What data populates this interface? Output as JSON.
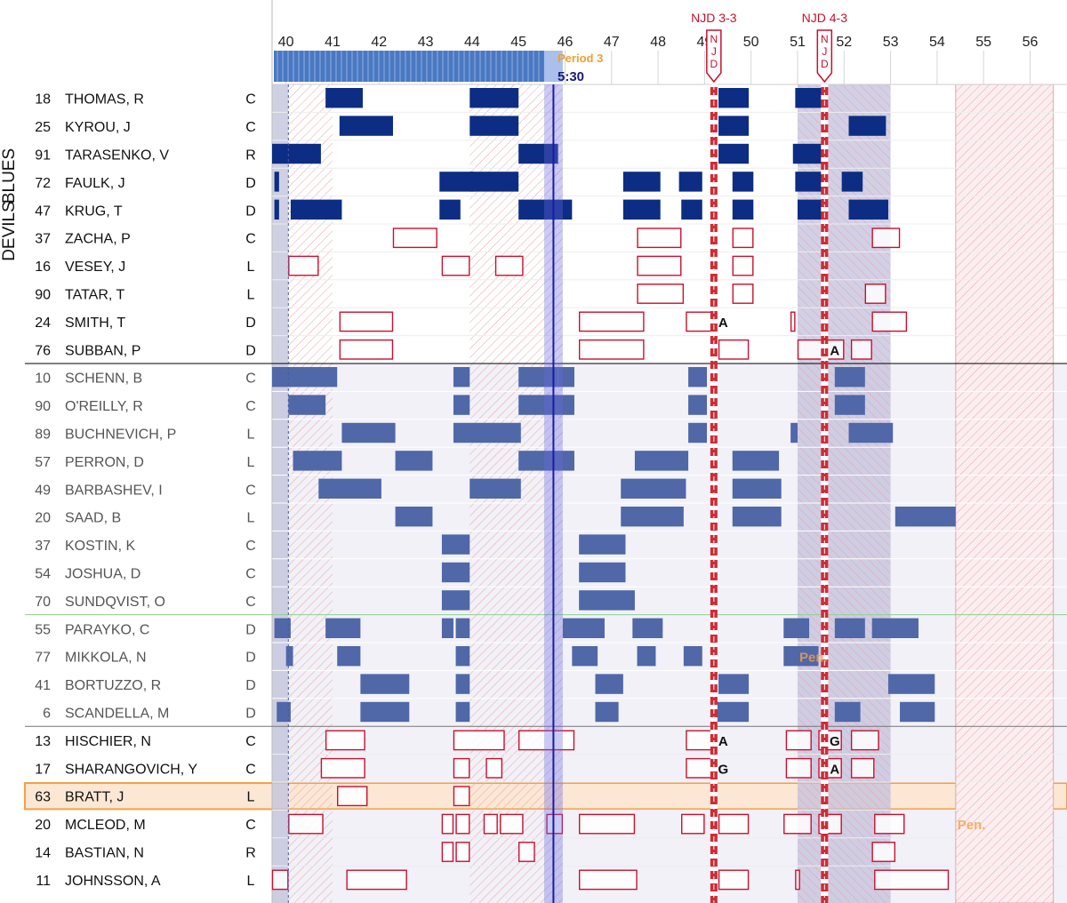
{
  "team_labels": {
    "top": "DEVILS",
    "bottom": "BLUES"
  },
  "period_label": "Period 3",
  "time_label": "5:30",
  "chart_data": {
    "type": "shift-chart",
    "x_ticks": [
      "40",
      "41",
      "42",
      "43",
      "44",
      "45",
      "46",
      "47",
      "48",
      "49",
      "50",
      "51",
      "52",
      "53",
      "54",
      "55",
      "56"
    ],
    "xlim": [
      39.7,
      56.8
    ],
    "colors": {
      "blues": "#0c2d83",
      "devils": "#c8102e",
      "highlight": "#f5a045",
      "period": "#4a78c2",
      "goal_line": "#d02b35"
    },
    "goals": [
      {
        "label": "NJD 3-3",
        "team": "NJD",
        "time": 49.2
      },
      {
        "label": "NJD 4-3",
        "team": "NJD",
        "time": 51.58
      }
    ],
    "team_code": "N J D",
    "penalty_label": "Pen.",
    "penalties": [
      {
        "team": "BLUES",
        "start": 51.0,
        "end": 53.0,
        "label_row": "MIKKOLA, N"
      },
      {
        "team": "DEVILS",
        "start": 54.4,
        "end": 56.5,
        "label_row": "MCLEOD, M"
      }
    ],
    "players": [
      {
        "num": "18",
        "name": "THOMAS, R",
        "pos": "C",
        "team": "BLUES",
        "shifts": [
          [
            40.85,
            41.65
          ],
          [
            43.95,
            45.0
          ],
          [
            49.3,
            49.95
          ],
          [
            50.95,
            51.6
          ]
        ]
      },
      {
        "num": "25",
        "name": "KYROU, J",
        "pos": "C",
        "team": "BLUES",
        "shifts": [
          [
            41.15,
            42.3
          ],
          [
            43.95,
            45.0
          ],
          [
            49.3,
            49.95
          ],
          [
            52.1,
            52.9
          ]
        ]
      },
      {
        "num": "91",
        "name": "TARASENKO, V",
        "pos": "R",
        "team": "BLUES",
        "shifts": [
          [
            39.7,
            40.75
          ],
          [
            45.0,
            45.85
          ],
          [
            49.3,
            49.95
          ],
          [
            50.9,
            51.6
          ]
        ]
      },
      {
        "num": "72",
        "name": "FAULK, J",
        "pos": "D",
        "team": "BLUES",
        "shifts": [
          [
            39.75,
            39.85
          ],
          [
            43.3,
            44.05
          ],
          [
            43.95,
            45.0
          ],
          [
            47.25,
            48.05
          ],
          [
            48.45,
            48.95
          ],
          [
            49.6,
            50.05
          ],
          [
            50.95,
            51.6
          ],
          [
            51.95,
            52.4
          ]
        ]
      },
      {
        "num": "47",
        "name": "KRUG, T",
        "pos": "D",
        "team": "BLUES",
        "shifts": [
          [
            39.75,
            39.85
          ],
          [
            40.1,
            41.2
          ],
          [
            43.3,
            43.75
          ],
          [
            45.0,
            46.15
          ],
          [
            47.25,
            48.05
          ],
          [
            48.5,
            48.95
          ],
          [
            49.6,
            50.05
          ],
          [
            51.0,
            51.55
          ],
          [
            52.1,
            52.95
          ]
        ]
      },
      {
        "num": "37",
        "name": "ZACHA, P",
        "pos": "C",
        "team": "DEVILS",
        "shifts": [
          [
            42.3,
            43.25
          ],
          [
            47.55,
            48.5
          ],
          [
            49.6,
            50.05
          ],
          [
            52.6,
            53.2
          ]
        ]
      },
      {
        "num": "16",
        "name": "VESEY, J",
        "pos": "L",
        "team": "DEVILS",
        "shifts": [
          [
            40.05,
            40.7
          ],
          [
            43.35,
            43.95
          ],
          [
            44.5,
            45.1
          ],
          [
            47.55,
            48.5
          ],
          [
            49.6,
            50.05
          ]
        ]
      },
      {
        "num": "90",
        "name": "TATAR, T",
        "pos": "L",
        "team": "DEVILS",
        "shifts": [
          [
            47.55,
            48.55
          ],
          [
            49.6,
            50.05
          ],
          [
            52.45,
            52.9
          ]
        ]
      },
      {
        "num": "24",
        "name": "SMITH, T",
        "pos": "D",
        "team": "DEVILS",
        "shifts": [
          [
            41.15,
            42.3
          ],
          [
            46.3,
            47.7
          ],
          [
            48.6,
            49.15
          ],
          [
            50.85,
            50.95
          ],
          [
            52.6,
            53.35
          ]
        ],
        "marks": [
          {
            "text": "A",
            "t": 49.4
          }
        ]
      },
      {
        "num": "76",
        "name": "SUBBAN, P",
        "pos": "D",
        "team": "DEVILS",
        "shifts": [
          [
            41.15,
            42.3
          ],
          [
            46.3,
            47.7
          ],
          [
            49.3,
            49.95
          ],
          [
            51.0,
            51.55
          ],
          [
            51.6,
            52.0
          ],
          [
            52.15,
            52.6
          ]
        ],
        "marks": [
          {
            "text": "A",
            "t": 51.8
          }
        ]
      },
      {
        "num": "10",
        "name": "SCHENN, B",
        "pos": "C",
        "team": "BLUES",
        "shifts": [
          [
            39.7,
            41.1
          ],
          [
            43.6,
            43.95
          ],
          [
            45.0,
            45.85
          ],
          [
            45.85,
            46.2
          ],
          [
            48.65,
            49.05
          ],
          [
            51.8,
            52.45
          ]
        ]
      },
      {
        "num": "90",
        "name": "O'REILLY, R",
        "pos": "C",
        "team": "BLUES",
        "shifts": [
          [
            40.05,
            40.85
          ],
          [
            43.6,
            43.95
          ],
          [
            45.0,
            46.2
          ],
          [
            48.65,
            49.05
          ],
          [
            51.8,
            52.45
          ]
        ]
      },
      {
        "num": "89",
        "name": "BUCHNEVICH, P",
        "pos": "L",
        "team": "BLUES",
        "shifts": [
          [
            41.2,
            42.35
          ],
          [
            43.6,
            45.05
          ],
          [
            48.65,
            49.05
          ],
          [
            50.85,
            51.0
          ],
          [
            52.1,
            53.05
          ]
        ]
      },
      {
        "num": "57",
        "name": "PERRON, D",
        "pos": "L",
        "team": "BLUES",
        "shifts": [
          [
            40.15,
            41.2
          ],
          [
            42.35,
            43.15
          ],
          [
            45.0,
            46.2
          ],
          [
            47.5,
            48.65
          ],
          [
            49.6,
            50.6
          ]
        ]
      },
      {
        "num": "49",
        "name": "BARBASHEV, I",
        "pos": "C",
        "team": "BLUES",
        "shifts": [
          [
            40.7,
            42.05
          ],
          [
            43.95,
            45.05
          ],
          [
            47.2,
            48.6
          ],
          [
            49.6,
            50.65
          ]
        ]
      },
      {
        "num": "20",
        "name": "SAAD, B",
        "pos": "L",
        "team": "BLUES",
        "shifts": [
          [
            42.35,
            43.15
          ],
          [
            47.2,
            48.55
          ],
          [
            49.6,
            50.65
          ],
          [
            53.1,
            54.4
          ]
        ]
      },
      {
        "num": "37",
        "name": "KOSTIN, K",
        "pos": "C",
        "team": "BLUES",
        "shifts": [
          [
            43.35,
            43.95
          ],
          [
            46.3,
            47.3
          ]
        ]
      },
      {
        "num": "54",
        "name": "JOSHUA, D",
        "pos": "C",
        "team": "BLUES",
        "shifts": [
          [
            43.35,
            43.95
          ],
          [
            46.3,
            47.3
          ]
        ]
      },
      {
        "num": "70",
        "name": "SUNDQVIST, O",
        "pos": "C",
        "team": "BLUES",
        "shifts": [
          [
            43.35,
            43.95
          ],
          [
            46.3,
            47.5
          ]
        ]
      },
      {
        "num": "55",
        "name": "PARAYKO, C",
        "pos": "D",
        "team": "BLUES",
        "shifts": [
          [
            39.75,
            40.1
          ],
          [
            40.85,
            41.6
          ],
          [
            43.35,
            43.6
          ],
          [
            43.65,
            43.95
          ],
          [
            45.95,
            46.85
          ],
          [
            47.45,
            48.1
          ],
          [
            50.7,
            51.25
          ],
          [
            51.8,
            52.45
          ],
          [
            52.6,
            53.6
          ]
        ]
      },
      {
        "num": "77",
        "name": "MIKKOLA, N",
        "pos": "D",
        "team": "BLUES",
        "shifts": [
          [
            40.0,
            40.15
          ],
          [
            41.1,
            41.6
          ],
          [
            43.65,
            43.95
          ],
          [
            46.15,
            46.7
          ],
          [
            47.55,
            47.95
          ],
          [
            48.55,
            48.95
          ],
          [
            50.7,
            51.45
          ]
        ]
      },
      {
        "num": "41",
        "name": "BORTUZZO, R",
        "pos": "D",
        "team": "BLUES",
        "shifts": [
          [
            41.6,
            42.65
          ],
          [
            43.65,
            43.95
          ],
          [
            46.65,
            47.25
          ],
          [
            49.3,
            49.95
          ],
          [
            52.95,
            53.95
          ]
        ]
      },
      {
        "num": "6",
        "name": "SCANDELLA, M",
        "pos": "D",
        "team": "BLUES",
        "shifts": [
          [
            39.8,
            40.1
          ],
          [
            41.6,
            42.65
          ],
          [
            43.65,
            43.95
          ],
          [
            46.65,
            47.15
          ],
          [
            49.15,
            49.95
          ],
          [
            51.8,
            52.35
          ],
          [
            53.2,
            53.95
          ]
        ]
      },
      {
        "num": "13",
        "name": "HISCHIER, N",
        "pos": "C",
        "team": "DEVILS",
        "shifts": [
          [
            40.85,
            41.7
          ],
          [
            43.6,
            44.7
          ],
          [
            45.0,
            46.2
          ],
          [
            48.6,
            49.15
          ],
          [
            50.75,
            51.3
          ],
          [
            51.45,
            51.95
          ],
          [
            52.15,
            52.75
          ]
        ],
        "marks": [
          {
            "text": "A",
            "t": 49.4
          },
          {
            "text": "G",
            "t": 51.8
          }
        ]
      },
      {
        "num": "17",
        "name": "SHARANGOVICH, Y",
        "pos": "C",
        "team": "DEVILS",
        "shifts": [
          [
            40.75,
            41.7
          ],
          [
            43.6,
            43.95
          ],
          [
            44.3,
            44.65
          ],
          [
            48.6,
            49.15
          ],
          [
            50.75,
            51.3
          ],
          [
            51.45,
            51.95
          ],
          [
            52.15,
            52.65
          ]
        ],
        "marks": [
          {
            "text": "G",
            "t": 49.4
          },
          {
            "text": "A",
            "t": 51.8
          }
        ]
      },
      {
        "num": "63",
        "name": "BRATT, J",
        "pos": "L",
        "team": "DEVILS",
        "shifts": [
          [
            41.1,
            41.75
          ],
          [
            43.6,
            43.95
          ]
        ],
        "highlight": true
      },
      {
        "num": "20",
        "name": "MCLEOD, M",
        "pos": "C",
        "team": "DEVILS",
        "shifts": [
          [
            40.05,
            40.8
          ],
          [
            43.35,
            43.6
          ],
          [
            43.65,
            43.95
          ],
          [
            44.25,
            44.55
          ],
          [
            44.6,
            45.1
          ],
          [
            45.6,
            45.95
          ],
          [
            46.3,
            47.5
          ],
          [
            48.5,
            49.0
          ],
          [
            49.3,
            49.95
          ],
          [
            50.7,
            51.3
          ],
          [
            51.45,
            51.95
          ],
          [
            52.65,
            53.3
          ]
        ]
      },
      {
        "num": "14",
        "name": "BASTIAN, N",
        "pos": "R",
        "team": "DEVILS",
        "shifts": [
          [
            43.35,
            43.6
          ],
          [
            43.65,
            43.95
          ],
          [
            45.0,
            45.35
          ],
          [
            52.6,
            53.1
          ]
        ]
      },
      {
        "num": "11",
        "name": "JOHNSSON, A",
        "pos": "L",
        "team": "DEVILS",
        "shifts": [
          [
            39.7,
            40.05
          ],
          [
            41.3,
            42.6
          ],
          [
            46.3,
            47.55
          ],
          [
            49.3,
            49.95
          ],
          [
            50.95,
            51.05
          ],
          [
            52.65,
            54.25
          ]
        ]
      }
    ]
  }
}
